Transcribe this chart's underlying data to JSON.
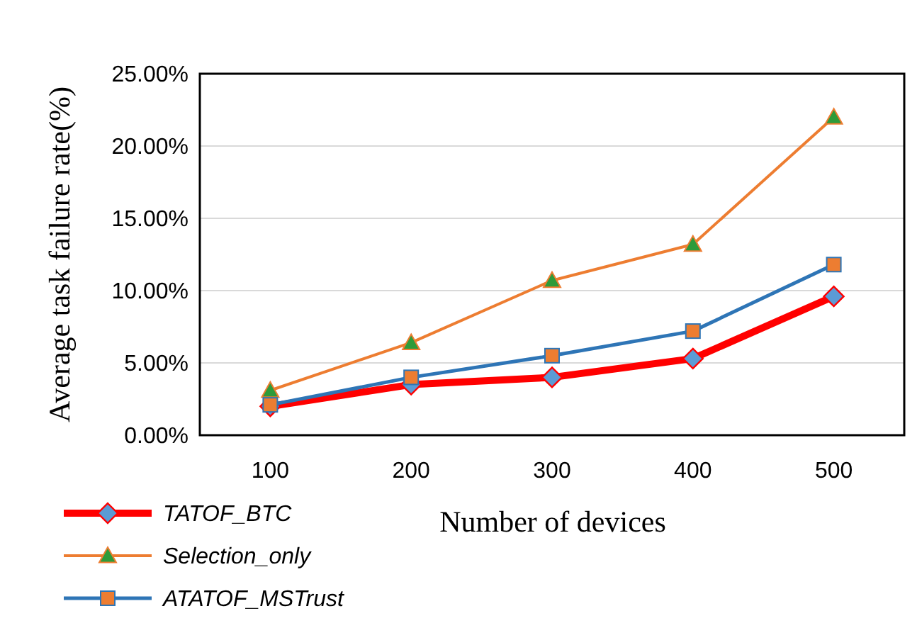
{
  "chart_data": {
    "type": "line",
    "xlabel": "Number of devices",
    "ylabel": "Average task failure rate(%)",
    "categories": [
      "100",
      "200",
      "300",
      "400",
      "500"
    ],
    "series": [
      {
        "name": "TATOF_BTC",
        "color": "#ff0000",
        "values": [
          2.0,
          3.5,
          4.0,
          5.3,
          9.6
        ],
        "marker": "diamond"
      },
      {
        "name": "Selection_only",
        "color": "#ed7d31",
        "values": [
          3.1,
          6.4,
          10.7,
          13.2,
          22.0
        ],
        "marker": "triangle"
      },
      {
        "name": "ATATOF_MSTrust",
        "color": "#2e75b6",
        "values": [
          2.1,
          4.0,
          5.5,
          7.2,
          11.8
        ],
        "marker": "square"
      }
    ],
    "ylim": [
      0,
      25
    ],
    "yticks": [
      {
        "value": 0,
        "label": "0.00%"
      },
      {
        "value": 5,
        "label": "5.00%"
      },
      {
        "value": 10,
        "label": "10.00%"
      },
      {
        "value": 15,
        "label": "15.00%"
      },
      {
        "value": 20,
        "label": "20.00%"
      },
      {
        "value": 25,
        "label": "25.00%"
      }
    ],
    "grid": "y",
    "legend": "bottom left",
    "line_style": "solid"
  }
}
